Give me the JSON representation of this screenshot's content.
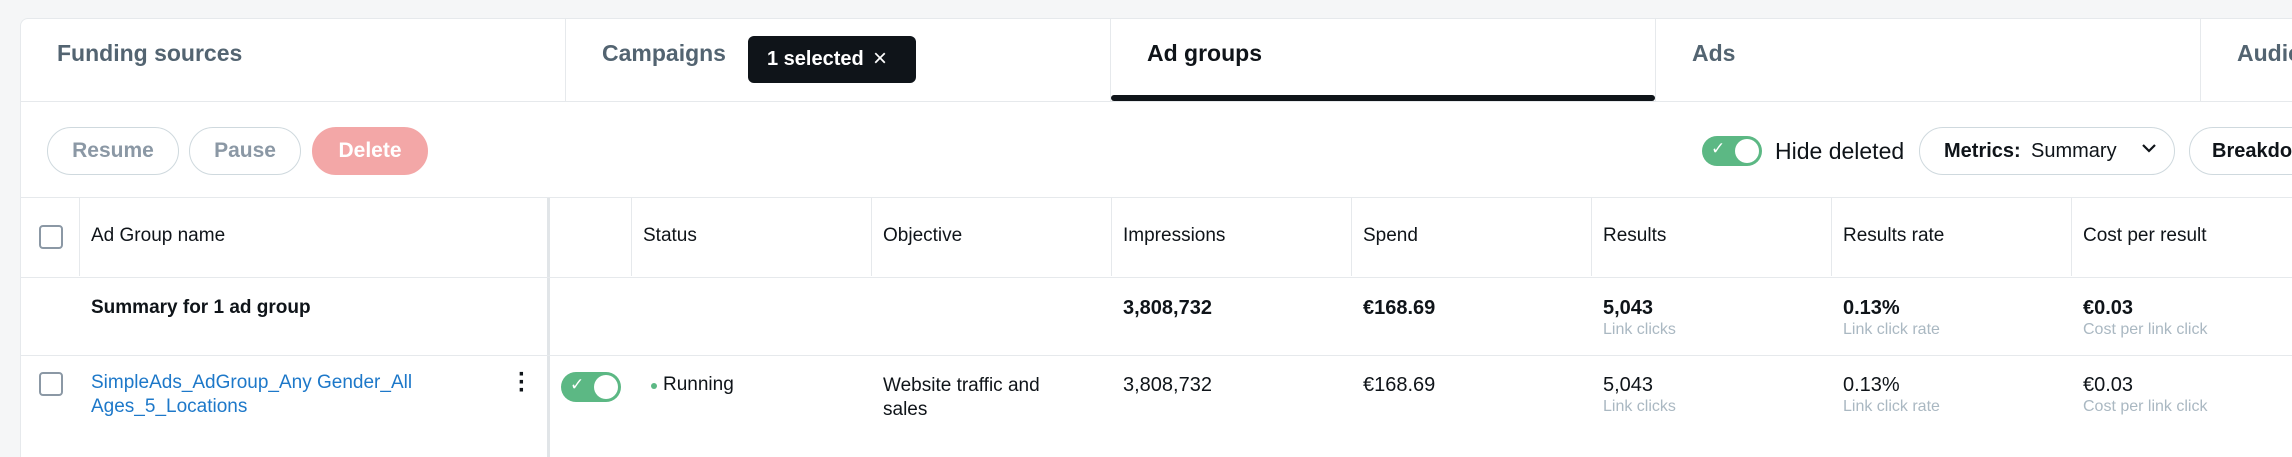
{
  "tabs": [
    {
      "label": "Funding sources"
    },
    {
      "label": "Campaigns"
    },
    {
      "label": "Ad groups"
    },
    {
      "label": "Ads"
    },
    {
      "label": "Audie"
    }
  ],
  "selected_chip": {
    "label": "1 selected",
    "close_icon": "×"
  },
  "toolbar": {
    "resume_label": "Resume",
    "pause_label": "Pause",
    "delete_label": "Delete",
    "hide_deleted_label": "Hide deleted",
    "hide_deleted_on": true,
    "metrics_label": "Metrics:",
    "metrics_value": "Summary",
    "breakdown_label": "Breakdo"
  },
  "table": {
    "columns": [
      "Ad Group name",
      "Status",
      "Objective",
      "Impressions",
      "Spend",
      "Results",
      "Results rate",
      "Cost per result"
    ],
    "summary": {
      "label": "Summary for 1 ad group",
      "impressions": "3,808,732",
      "spend": "€168.69",
      "results": "5,043",
      "results_sub": "Link clicks",
      "results_rate": "0.13%",
      "results_rate_sub": "Link click rate",
      "cost_per_result": "€0.03",
      "cost_per_result_sub": "Cost per link click"
    },
    "rows": [
      {
        "name": "SimpleAds_AdGroup_Any Gender_All Ages_5_Locations",
        "enabled": true,
        "status": "Running",
        "objective": "Website traffic and sales",
        "impressions": "3,808,732",
        "spend": "€168.69",
        "results": "5,043",
        "results_sub": "Link clicks",
        "results_rate": "0.13%",
        "results_rate_sub": "Link click rate",
        "cost_per_result": "€0.03",
        "cost_per_result_sub": "Cost per link click"
      }
    ]
  },
  "colors": {
    "accent_green": "#5cb884",
    "link_blue": "#1d78c9",
    "delete_red": "#f3a7a7",
    "dark": "#0f1419"
  }
}
